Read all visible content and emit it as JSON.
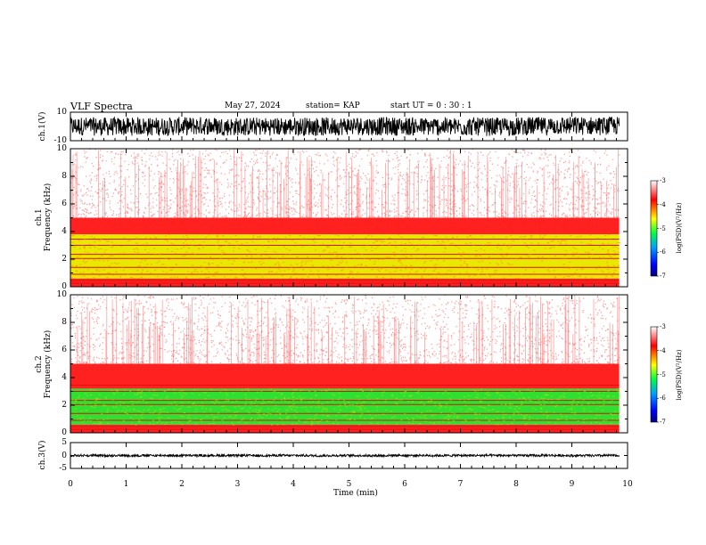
{
  "header": {
    "title": "VLF Spectra",
    "date": "May 27, 2024",
    "station": "station= KAP",
    "start": "start  UT =   0 : 30 : 1"
  },
  "colors": {
    "spec_low": "#ffffff",
    "spec_red": "#ff2020",
    "spec_yellow": "#e8e800",
    "spec_green": "#30e030"
  },
  "chart_data": [
    {
      "type": "line",
      "name": "ch.1 waveform",
      "ylabel": "ch.1(V)",
      "ylim": [
        -10,
        10
      ],
      "yticks": [
        "10",
        "-10"
      ],
      "xlim": [
        0,
        10
      ]
    },
    {
      "type": "heatmap",
      "name": "ch.1 spectrogram",
      "ylabel_top": "ch.1",
      "ylabel": "Frequency (kHz)",
      "ylim": [
        0,
        10
      ],
      "yticks": [
        "0",
        "2",
        "4",
        "6",
        "8",
        "10"
      ],
      "xlim": [
        0,
        10
      ],
      "data_end_min": 9.85,
      "colorbar": {
        "label": "log(PSD)(V²/Hz)",
        "ticks": [
          "-3",
          "-4",
          "-5",
          "-6",
          "-7"
        ],
        "range": [
          -7,
          -3
        ]
      },
      "bands_khz": [
        {
          "from": 0,
          "to": 0.6,
          "level": "red"
        },
        {
          "from": 0.6,
          "to": 3.8,
          "level": "yellow"
        },
        {
          "from": 3.8,
          "to": 5.0,
          "level": "red"
        },
        {
          "from": 5.0,
          "to": 10,
          "level": "low"
        }
      ]
    },
    {
      "type": "heatmap",
      "name": "ch.2 spectrogram",
      "ylabel_top": "ch.2",
      "ylabel": "Frequency (kHz)",
      "ylim": [
        0,
        10
      ],
      "yticks": [
        "0",
        "2",
        "4",
        "6",
        "8",
        "10"
      ],
      "xlim": [
        0,
        10
      ],
      "data_end_min": 9.85,
      "colorbar": {
        "label": "log(PSD)(V²/Hz)",
        "ticks": [
          "-3",
          "-4",
          "-5",
          "-6",
          "-7"
        ],
        "range": [
          -7,
          -3
        ]
      },
      "bands_khz": [
        {
          "from": 0,
          "to": 0.6,
          "level": "red"
        },
        {
          "from": 0.6,
          "to": 3.2,
          "level": "green"
        },
        {
          "from": 3.2,
          "to": 5.0,
          "level": "red"
        },
        {
          "from": 5.0,
          "to": 10,
          "level": "low"
        }
      ]
    },
    {
      "type": "line",
      "name": "ch.3 waveform",
      "ylabel": "ch.3(V)",
      "ylim": [
        -5,
        5
      ],
      "yticks": [
        "5",
        "0",
        "-5"
      ],
      "xlim": [
        0,
        10
      ]
    }
  ],
  "xaxis": {
    "label": "Time (min)",
    "ticks": [
      "0",
      "1",
      "2",
      "3",
      "4",
      "5",
      "6",
      "7",
      "8",
      "9",
      "10"
    ]
  }
}
